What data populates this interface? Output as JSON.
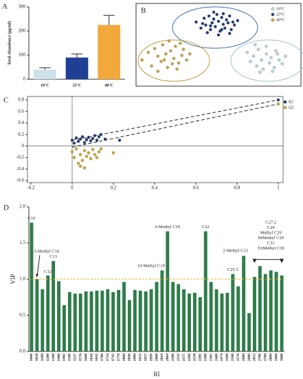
{
  "chart_data": [
    {
      "type": "bar",
      "panel": "A",
      "ylabel": "Total Abundance (µg/ml)",
      "categories": [
        "10°C",
        "25°C",
        "40°C"
      ],
      "values": [
        40,
        90,
        225
      ],
      "errors": [
        8,
        15,
        40
      ],
      "colors": [
        "#cfe1ea",
        "#1f3f94",
        "#f2a83a"
      ],
      "ylim": [
        0,
        300
      ],
      "yticks": [
        0,
        100,
        200,
        300
      ]
    },
    {
      "type": "scatter",
      "panel": "B",
      "xlim": [
        0,
        100
      ],
      "ylim": [
        0,
        100
      ],
      "legend": "upper right",
      "series": [
        {
          "name": "10°C",
          "color": "#bcd7e2",
          "x": [
            68,
            70,
            72,
            74,
            75,
            77,
            78,
            80,
            82,
            83,
            85,
            86,
            88,
            90,
            92,
            76,
            80,
            84,
            73,
            87
          ],
          "y": [
            40,
            28,
            35,
            22,
            44,
            30,
            18,
            38,
            26,
            33,
            20,
            42,
            30,
            25,
            35,
            14,
            48,
            15,
            50,
            38
          ]
        },
        {
          "name": "25°C",
          "color": "#1f3a7a",
          "x": [
            36,
            39,
            41,
            42,
            44,
            45,
            46,
            47,
            48,
            49,
            50,
            51,
            52,
            53,
            54,
            55,
            56,
            57,
            58,
            60,
            62,
            43,
            47,
            50,
            53,
            57,
            40,
            45,
            52,
            59
          ],
          "y": [
            80,
            72,
            85,
            76,
            88,
            70,
            79,
            84,
            74,
            90,
            81,
            68,
            86,
            77,
            72,
            83,
            79,
            88,
            70,
            76,
            82,
            66,
            93,
            63,
            91,
            65,
            78,
            75,
            70,
            80
          ]
        },
        {
          "name": "40°C",
          "color": "#c8a845",
          "x": [
            2,
            6,
            8,
            10,
            12,
            14,
            15,
            17,
            18,
            20,
            22,
            23,
            25,
            27,
            28,
            30,
            32,
            12,
            19,
            24,
            16,
            26,
            21
          ],
          "y": [
            30,
            40,
            22,
            45,
            35,
            28,
            50,
            38,
            20,
            42,
            32,
            48,
            26,
            36,
            44,
            30,
            38,
            15,
            55,
            18,
            30,
            52,
            25
          ]
        }
      ]
    },
    {
      "type": "scatter",
      "panel": "C",
      "xlim": [
        -0.2,
        1
      ],
      "ylim": [
        -0.6,
        0.8
      ],
      "xticks": [
        -0.2,
        0,
        0.2,
        0.4,
        0.6,
        0.8,
        1
      ],
      "yticks": [
        -0.6,
        -0.4,
        -0.2,
        0,
        0.2,
        0.4,
        0.6,
        0.8
      ],
      "legend": "upper right",
      "series": [
        {
          "name": "R2",
          "color": "#1f3a7a",
          "intercept": 0.1,
          "x": [
            0,
            0.01,
            0.02,
            0.03,
            0.04,
            0.05,
            0.06,
            0.07,
            0.08,
            0.09,
            0.1,
            0.11,
            0.12,
            0.13,
            0.14,
            0.16,
            0.23,
            1
          ],
          "y": [
            0.1,
            0.05,
            0.14,
            0.08,
            0.12,
            0.16,
            0.06,
            0.11,
            0.15,
            0.09,
            0.13,
            0.18,
            0.1,
            0.16,
            0.2,
            0.12,
            0.1,
            0.8
          ]
        },
        {
          "name": "Q2",
          "color": "#c8b030",
          "intercept": -0.02,
          "x": [
            0,
            0.01,
            0.02,
            0.03,
            0.04,
            0.05,
            0.06,
            0.07,
            0.08,
            0.09,
            0.1,
            0.11,
            0.12,
            0.13,
            0.14,
            0.2,
            0.04,
            0.06,
            1
          ],
          "y": [
            -0.1,
            -0.2,
            -0.05,
            -0.3,
            -0.15,
            -0.25,
            -0.08,
            -0.18,
            -0.12,
            -0.22,
            -0.06,
            -0.15,
            -0.2,
            -0.1,
            -0.05,
            -0.12,
            -0.35,
            -0.38,
            0.73
          ]
        }
      ]
    },
    {
      "type": "bar",
      "panel": "D",
      "ylabel": "VIP",
      "xlabel": "RI",
      "color": "#2f7d4a",
      "reference_line": 1,
      "categories": [
        1000,
        1058,
        1100,
        1200,
        1300,
        1400,
        1462,
        1500,
        1537,
        1576,
        1600,
        1616,
        1643,
        1700,
        1714,
        1743,
        1778,
        1800,
        1846,
        1900,
        1933,
        1957,
        1999,
        2000,
        2024,
        2064,
        2100,
        2132,
        2175,
        2200,
        2238,
        2281,
        2300,
        2365,
        2400,
        2474,
        2490,
        2500,
        2576,
        2600,
        2606,
        2653,
        2700,
        2760,
        2800,
        2900,
        3000
      ],
      "values": [
        1.78,
        1.0,
        0.86,
        1.05,
        1.25,
        0.97,
        0.64,
        0.82,
        0.8,
        0.8,
        0.83,
        0.83,
        0.84,
        0.84,
        0.86,
        0.82,
        0.85,
        0.96,
        0.71,
        0.85,
        0.84,
        0.83,
        0.86,
        0.96,
        1.12,
        1.66,
        0.96,
        0.93,
        0.86,
        0.8,
        0.81,
        0.75,
        1.66,
        0.96,
        0.86,
        0.8,
        0.81,
        1.07,
        0.9,
        1.32,
        0.53,
        1.03,
        1.18,
        1.07,
        1.12,
        1.1,
        1.05
      ],
      "ylim": [
        0,
        2
      ],
      "yticks": [
        {
          "value": 0,
          "label": "0.0"
        },
        0.5,
        {
          "value": 1,
          "label": "1.0"
        },
        1.5,
        {
          "value": 2,
          "label": "2.0"
        }
      ],
      "annotations": [
        "C10",
        "5-Methyl C10",
        "C12",
        "C13",
        "10-Methyl C19",
        "6-Methyl C19",
        "C22",
        "C25:1",
        "2-Methyl C25",
        "C27:2",
        "C29",
        "Methyl C29",
        "DiMethyl C29",
        "C31",
        "TriMethyl C30"
      ]
    }
  ]
}
